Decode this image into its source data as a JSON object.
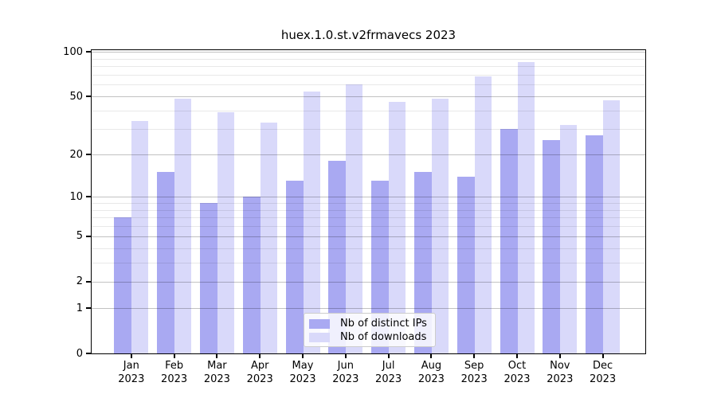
{
  "chart_data": {
    "type": "bar",
    "title": "huex.1.0.st.v2frmavecs 2023",
    "categories": [
      "Jan 2023",
      "Feb 2023",
      "Mar 2023",
      "Apr 2023",
      "May 2023",
      "Jun 2023",
      "Jul 2023",
      "Aug 2023",
      "Sep 2023",
      "Oct 2023",
      "Nov 2023",
      "Dec 2023"
    ],
    "series": [
      {
        "name": "Nb of distinct IPs",
        "color": "#a9a9f2",
        "values": [
          7,
          15,
          9,
          10,
          13,
          18,
          13,
          15,
          14,
          30,
          25,
          27
        ]
      },
      {
        "name": "Nb of downloads",
        "color": "#d9d9fa",
        "values": [
          34,
          48,
          39,
          33,
          54,
          60,
          46,
          48,
          68,
          85,
          32,
          47
        ]
      }
    ],
    "yscale": "log1p",
    "ylim": [
      0,
      100
    ],
    "ytick_labels": [
      0,
      1,
      2,
      5,
      10,
      20,
      50,
      100
    ],
    "minor_gridlines": [
      3,
      4,
      6,
      7,
      8,
      9,
      30,
      40,
      60,
      70,
      80,
      90
    ],
    "grid": "horizontal",
    "legend_position": "lower center",
    "axis_color": "#000000",
    "grid_major_color": "#c2c2c2",
    "grid_minor_color": "#e8e8e8",
    "background_color": "#ffffff"
  }
}
